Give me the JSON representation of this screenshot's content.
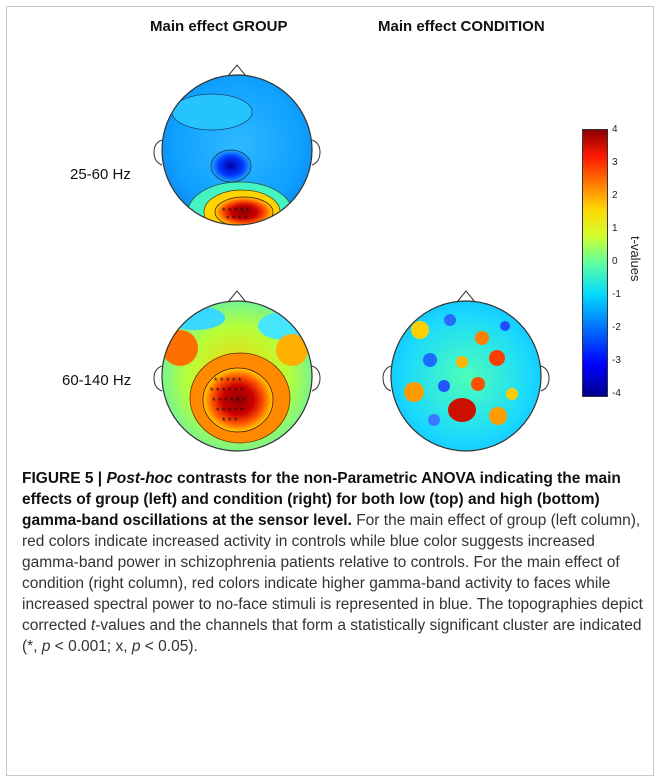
{
  "titles": {
    "group": "Main effect GROUP",
    "condition": "Main effect CONDITION"
  },
  "rows": {
    "low": "25-60 Hz",
    "high": "60-140 Hz"
  },
  "colorbar": {
    "label": "t-values",
    "ticks": [
      "4",
      "3",
      "2",
      "1",
      "0",
      "-1",
      "-2",
      "-3",
      "-4"
    ]
  },
  "caption": {
    "bold_prefix": "FIGURE 5 | ",
    "bold_italic": "Post-hoc",
    "bold_rest": " contrasts for the non-Parametric ANOVA indicating the main effects of group (left) and condition (right) for both low (top) and high (bottom) gamma-band oscillations at the sensor level.",
    "body_1": " For the main effect of group (left column), red colors indicate increased activity in controls while blue color suggests increased gamma-band power in schizophrenia patients relative to controls. For the main effect of condition (right column), red colors indicate higher gamma-band activity to faces while increased spectral power to no-face stimuli is represented in blue. The topographies depict corrected ",
    "t_italic": "t",
    "body_2": "-values and the channels that form a statistically significant cluster are indicated (*, ",
    "p1": "p",
    "body_3": " < 0.001; x, ",
    "p2": "p",
    "body_4": " < 0.05)."
  }
}
